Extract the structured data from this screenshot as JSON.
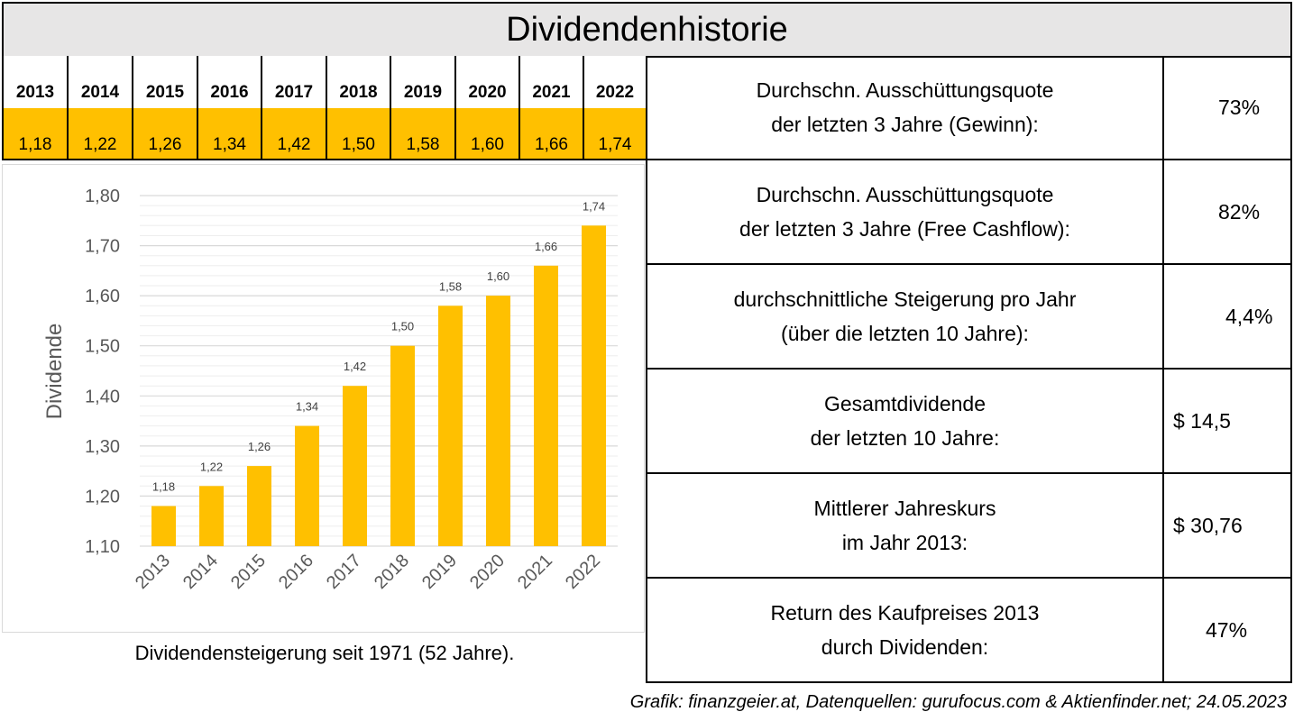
{
  "title": "Dividendenhistorie",
  "year_table": {
    "years": [
      "2013",
      "2014",
      "2015",
      "2016",
      "2017",
      "2018",
      "2019",
      "2020",
      "2021",
      "2022"
    ],
    "values": [
      "1,18",
      "1,22",
      "1,26",
      "1,34",
      "1,42",
      "1,50",
      "1,58",
      "1,60",
      "1,66",
      "1,74"
    ]
  },
  "chart_data": {
    "type": "bar",
    "categories": [
      "2013",
      "2014",
      "2015",
      "2016",
      "2017",
      "2018",
      "2019",
      "2020",
      "2021",
      "2022"
    ],
    "values": [
      1.18,
      1.22,
      1.26,
      1.34,
      1.42,
      1.5,
      1.58,
      1.6,
      1.66,
      1.74
    ],
    "data_labels": [
      "1,18",
      "1,22",
      "1,26",
      "1,34",
      "1,42",
      "1,50",
      "1,58",
      "1,60",
      "1,66",
      "1,74"
    ],
    "ylabel": "Dividende",
    "ylim": [
      1.1,
      1.8
    ],
    "yticks": [
      "1,10",
      "1,20",
      "1,30",
      "1,40",
      "1,50",
      "1,60",
      "1,70",
      "1,80"
    ],
    "grid": true,
    "bar_color": "#ffc000"
  },
  "chart_caption": "Dividendensteigerung seit 1971 (52 Jahre).",
  "stats": [
    {
      "label_line1": "Durchschn. Ausschüttungsquote",
      "label_line2": "der letzten 3 Jahre (Gewinn):",
      "value": "73%"
    },
    {
      "label_line1": "Durchschn. Ausschüttungsquote",
      "label_line2": "der letzten 3 Jahre (Free Cashflow):",
      "value": "82%"
    },
    {
      "label_line1": "durchschnittliche Steigerung pro Jahr",
      "label_line2": "(über die letzten 10 Jahre):",
      "value": "4,4%"
    },
    {
      "label_line1": "Gesamtdividende",
      "label_line2": "der letzten 10 Jahre:",
      "value": "$ 14,5"
    },
    {
      "label_line1": "Mittlerer Jahreskurs",
      "label_line2": "im Jahr 2013:",
      "value": "$ 30,76"
    },
    {
      "label_line1": "Return des Kaufpreises 2013",
      "label_line2": "durch Dividenden:",
      "value": "47%"
    }
  ],
  "footer": "Grafik: finanzgeier.at, Datenquellen: gurufocus.com & Aktienfinder.net; 24.05.2023"
}
